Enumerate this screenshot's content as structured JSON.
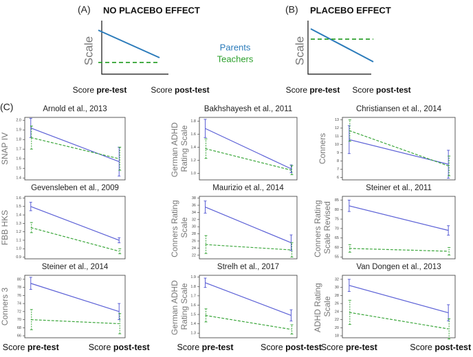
{
  "panels": [
    {
      "label": "(A)",
      "title": "NO PLACEBO EFFECT",
      "ylabel": "Scale",
      "xlabels": [
        "Score pre-test",
        "Score post-test"
      ]
    },
    {
      "label": "(B)",
      "title": "PLACEBO EFFECT",
      "ylabel": "Scale",
      "xlabels": [
        "Score pre-test",
        "Score post-test"
      ]
    }
  ],
  "legend": [
    {
      "name": "Parents",
      "color": "#2b7bba"
    },
    {
      "name": "Teachers",
      "color": "#2ca02c"
    }
  ],
  "panel_c_label": "(C)",
  "chart_data": [
    {
      "type": "line",
      "title": "Arnold et al., 2013",
      "ylabel": "SNAP IV",
      "categories": [
        null,
        null
      ],
      "series": [
        {
          "color": "#5a5fd6",
          "dashed": false,
          "values": [
            1.92,
            1.57
          ],
          "errors": [
            0.1,
            0.15
          ]
        },
        {
          "color": "#3aa63a",
          "dashed": true,
          "values": [
            1.82,
            1.6
          ],
          "errors": [
            0.12,
            0.12
          ]
        }
      ],
      "ylim": [
        1.38,
        2.03
      ],
      "yticks": [
        1.4,
        1.5,
        1.6,
        1.7,
        1.8,
        1.9,
        {
          "value": 2,
          "label": "2.0"
        }
      ]
    },
    {
      "type": "line",
      "title": "Bakhshayesh et al., 2011",
      "ylabel": "German ADHD Rating Scale",
      "categories": [
        null,
        null
      ],
      "series": [
        {
          "color": "#5a5fd6",
          "dashed": false,
          "values": [
            1.69,
            1.07
          ],
          "errors": [
            0.14,
            0.06
          ]
        },
        {
          "color": "#3aa63a",
          "dashed": true,
          "values": [
            1.38,
            1.05
          ],
          "errors": [
            0.15,
            0.07
          ]
        }
      ],
      "ylim": [
        0.9,
        1.86
      ],
      "yticks": [
        {
          "value": 1,
          "label": "1.0"
        },
        1.2,
        1.4,
        1.6,
        1.8
      ]
    },
    {
      "type": "line",
      "title": "Christiansen et al., 2014",
      "ylabel": "Conners",
      "categories": [
        null,
        null
      ],
      "series": [
        {
          "color": "#5a5fd6",
          "dashed": false,
          "values": [
            10.6,
            7.6
          ],
          "errors": [
            1.7,
            1.7
          ]
        },
        {
          "color": "#3aa63a",
          "dashed": true,
          "values": [
            11.7,
            7.4
          ],
          "errors": [
            1.3,
            1.2
          ]
        }
      ],
      "ylim": [
        5.7,
        13.3
      ],
      "yticks": [
        6,
        7,
        8,
        9,
        10,
        11,
        12,
        13
      ]
    },
    {
      "type": "line",
      "title": "Gevensleben et al., 2009",
      "ylabel": "FBB HKS",
      "categories": [
        null,
        null
      ],
      "series": [
        {
          "color": "#5a5fd6",
          "dashed": false,
          "values": [
            1.5,
            1.1
          ],
          "errors": [
            0.05,
            0.03
          ]
        },
        {
          "color": "#3aa63a",
          "dashed": true,
          "values": [
            1.25,
            0.97
          ],
          "errors": [
            0.06,
            0.03
          ]
        }
      ],
      "ylim": [
        0.88,
        1.62
      ],
      "yticks": [
        0.9,
        {
          "value": 1,
          "label": "1.0"
        },
        1.1,
        1.2,
        1.3,
        1.4,
        1.5,
        1.6
      ]
    },
    {
      "type": "line",
      "title": "Maurizio et al., 2014",
      "ylabel": "Conners Rating Scale",
      "categories": [
        null,
        null
      ],
      "series": [
        {
          "color": "#5a5fd6",
          "dashed": false,
          "values": [
            35.5,
            25.5
          ],
          "errors": [
            1.7,
            2.2
          ]
        },
        {
          "color": "#3aa63a",
          "dashed": true,
          "values": [
            25,
            23.5
          ],
          "errors": [
            2.5,
            2
          ]
        }
      ],
      "ylim": [
        21,
        38.5
      ],
      "yticks": [
        22,
        24,
        26,
        28,
        30,
        32,
        34,
        36,
        38
      ]
    },
    {
      "type": "line",
      "title": "Steiner et al., 2011",
      "ylabel": "Conners Rating Scale Revised",
      "categories": [
        null,
        null
      ],
      "series": [
        {
          "color": "#5a5fd6",
          "dashed": false,
          "values": [
            82,
            69
          ],
          "errors": [
            3,
            2.5
          ]
        },
        {
          "color": "#3aa63a",
          "dashed": true,
          "values": [
            59.5,
            58
          ],
          "errors": [
            2,
            2
          ]
        }
      ],
      "ylim": [
        54,
        87
      ],
      "yticks": [
        55,
        60,
        65,
        70,
        75,
        80,
        85
      ]
    },
    {
      "type": "line",
      "title": "Steiner et al., 2014",
      "ylabel": "Conners 3",
      "categories": [
        "Score pre-test",
        "Score post-test"
      ],
      "series": [
        {
          "color": "#5a5fd6",
          "dashed": false,
          "values": [
            79,
            72
          ],
          "errors": [
            1.5,
            2
          ]
        },
        {
          "color": "#3aa63a",
          "dashed": true,
          "values": [
            70,
            69
          ],
          "errors": [
            2.5,
            2.5
          ]
        }
      ],
      "ylim": [
        65.5,
        81
      ],
      "yticks": [
        66,
        68,
        70,
        72,
        74,
        76,
        78,
        80
      ]
    },
    {
      "type": "line",
      "title": "Strelh et al., 2017",
      "ylabel": "German ADHD Rating Scale",
      "categories": [
        "Score pre-test",
        "Score post-test"
      ],
      "series": [
        {
          "color": "#5a5fd6",
          "dashed": false,
          "values": [
            1.84,
            1.49
          ],
          "errors": [
            0.05,
            0.06
          ]
        },
        {
          "color": "#3aa63a",
          "dashed": true,
          "values": [
            1.49,
            1.34
          ],
          "errors": [
            0.07,
            0.05
          ]
        }
      ],
      "ylim": [
        1.25,
        1.92
      ],
      "yticks": [
        1.3,
        1.4,
        1.5,
        1.6,
        1.7,
        1.8,
        1.9
      ]
    },
    {
      "type": "line",
      "title": "Van Dongen et al., 2013",
      "ylabel": "ADHD Rating Scale",
      "categories": [
        "Score pre-test",
        "Score post-test"
      ],
      "series": [
        {
          "color": "#5a5fd6",
          "dashed": false,
          "values": [
            30.5,
            23.7
          ],
          "errors": [
            1.5,
            2
          ]
        },
        {
          "color": "#3aa63a",
          "dashed": true,
          "values": [
            23.8,
            19.7
          ],
          "errors": [
            3,
            2.5
          ]
        }
      ],
      "ylim": [
        17.5,
        33
      ],
      "yticks": [
        18,
        20,
        22,
        24,
        26,
        28,
        30,
        32
      ]
    }
  ]
}
